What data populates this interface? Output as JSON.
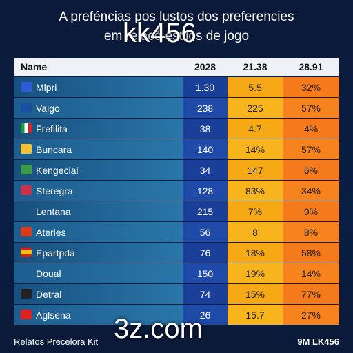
{
  "title": {
    "line1": "A preféncias pos lustos dos preferencies",
    "line2": "em relacó estilos de jogo"
  },
  "overlay": {
    "top": "kk456",
    "bottom": "3z.com"
  },
  "table": {
    "header": [
      "Name",
      "2028",
      "21.38",
      "28.91"
    ],
    "rows": [
      [
        "Mlpri",
        "1.30",
        "5.5",
        "32%"
      ],
      [
        "Vaigo",
        "238",
        "225",
        "57%"
      ],
      [
        "Frefilita",
        "38",
        "4.7",
        "4%"
      ],
      [
        "Buncara",
        "140",
        "14%",
        "57%"
      ],
      [
        "Kengecial",
        "34",
        "147",
        "6%"
      ],
      [
        "Steregra",
        "128",
        "83%",
        "34%"
      ],
      [
        "Lentana",
        "215",
        "7%",
        "9%"
      ],
      [
        "Ateries",
        "56",
        "8",
        "8%"
      ],
      [
        "Epartpda",
        "76",
        "18%",
        "58%"
      ],
      [
        "Doual",
        "150",
        "19%",
        "14%"
      ],
      [
        "Detral",
        "74",
        "15%",
        "77%"
      ],
      [
        "Aglsena",
        "26",
        "15.7",
        "27%"
      ]
    ]
  },
  "footer": {
    "left": "Relatos Precelora Kit",
    "right": "9M LK456"
  }
}
